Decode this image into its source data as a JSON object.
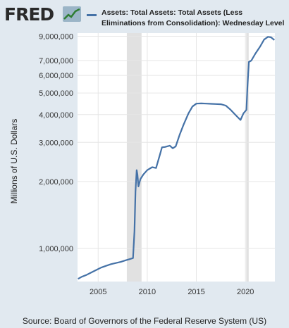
{
  "header": {
    "logo_text": "FRED",
    "logo_icon": "line-graph-icon",
    "series_title": "Assets: Total Assets: Total Assets (Less Eliminations from Consolidation): Wednesday Level",
    "series_color": "#4572a7"
  },
  "source": "Source: Board of Governors of the Federal Reserve System (US)",
  "chart_data": {
    "type": "line",
    "title": "",
    "ylabel": "Millions of U.S. Dollars",
    "xlabel": "",
    "yscale": "log",
    "ylim": [
      710000,
      9300000
    ],
    "xlim": [
      2002.9,
      2023.0
    ],
    "yticks": [
      1000000,
      2000000,
      3000000,
      4000000,
      5000000,
      6000000,
      7000000,
      9000000
    ],
    "ytick_labels": [
      "1,000,000",
      "2,000,000",
      "3,000,000",
      "4,000,000",
      "5,000,000",
      "6,000,000",
      "7,000,000",
      "9,000,000"
    ],
    "xticks": [
      2005,
      2010,
      2015,
      2020
    ],
    "xtick_labels": [
      "2005",
      "2010",
      "2015",
      "2020"
    ],
    "recessions": [
      [
        2007.92,
        2009.42
      ],
      [
        2020.08,
        2020.33
      ]
    ],
    "grid": true,
    "series": [
      {
        "name": "Assets: Total Assets: Total Assets (Less Eliminations from Consolidation): Wednesday Level",
        "color": "#4572a7",
        "points": [
          [
            2002.95,
            730000
          ],
          [
            2003.3,
            745000
          ],
          [
            2003.8,
            760000
          ],
          [
            2004.3,
            780000
          ],
          [
            2004.8,
            800000
          ],
          [
            2005.3,
            820000
          ],
          [
            2005.8,
            835000
          ],
          [
            2006.3,
            850000
          ],
          [
            2006.8,
            860000
          ],
          [
            2007.3,
            870000
          ],
          [
            2007.8,
            885000
          ],
          [
            2008.2,
            895000
          ],
          [
            2008.55,
            905000
          ],
          [
            2008.7,
            1200000
          ],
          [
            2008.8,
            1800000
          ],
          [
            2008.92,
            2250000
          ],
          [
            2009.0,
            2150000
          ],
          [
            2009.1,
            1900000
          ],
          [
            2009.3,
            2050000
          ],
          [
            2009.6,
            2150000
          ],
          [
            2010.0,
            2250000
          ],
          [
            2010.5,
            2320000
          ],
          [
            2010.9,
            2300000
          ],
          [
            2011.3,
            2650000
          ],
          [
            2011.5,
            2850000
          ],
          [
            2011.8,
            2860000
          ],
          [
            2012.3,
            2900000
          ],
          [
            2012.6,
            2820000
          ],
          [
            2012.9,
            2880000
          ],
          [
            2013.3,
            3250000
          ],
          [
            2013.7,
            3600000
          ],
          [
            2014.2,
            4050000
          ],
          [
            2014.6,
            4350000
          ],
          [
            2015.0,
            4480000
          ],
          [
            2015.5,
            4490000
          ],
          [
            2016.0,
            4480000
          ],
          [
            2016.5,
            4470000
          ],
          [
            2017.0,
            4460000
          ],
          [
            2017.5,
            4450000
          ],
          [
            2018.0,
            4390000
          ],
          [
            2018.5,
            4200000
          ],
          [
            2019.0,
            3980000
          ],
          [
            2019.5,
            3780000
          ],
          [
            2019.8,
            4050000
          ],
          [
            2020.1,
            4200000
          ],
          [
            2020.2,
            5300000
          ],
          [
            2020.35,
            6900000
          ],
          [
            2020.6,
            7000000
          ],
          [
            2021.0,
            7500000
          ],
          [
            2021.5,
            8100000
          ],
          [
            2021.9,
            8700000
          ],
          [
            2022.3,
            8950000
          ],
          [
            2022.6,
            8900000
          ],
          [
            2022.95,
            8650000
          ]
        ]
      }
    ]
  }
}
